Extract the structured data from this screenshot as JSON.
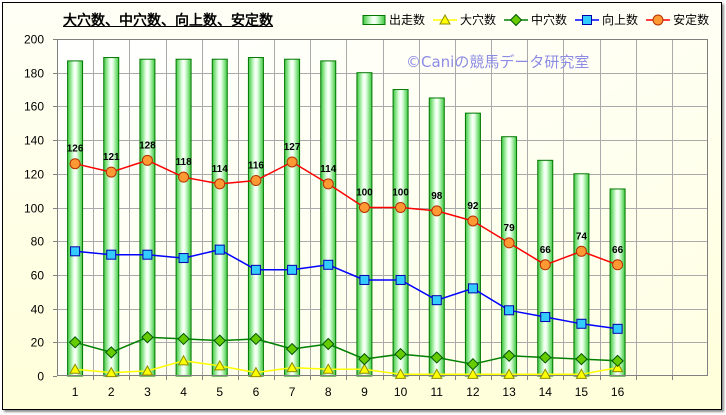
{
  "chart_data": {
    "type": "bar",
    "title": "大穴数、中穴数、向上数、安定数",
    "categories": [
      "1",
      "2",
      "3",
      "4",
      "5",
      "6",
      "7",
      "8",
      "9",
      "10",
      "11",
      "12",
      "13",
      "14",
      "15",
      "16"
    ],
    "ylim": [
      0,
      200
    ],
    "yticks": [
      0,
      20,
      40,
      60,
      80,
      100,
      120,
      140,
      160,
      180,
      200
    ],
    "grid": true,
    "legend": "top-right",
    "series": [
      {
        "name": "出走数",
        "type": "bar",
        "color": "#3CC83C",
        "edge_color": "#007700",
        "values": [
          187,
          189,
          188,
          188,
          188,
          189,
          188,
          187,
          180,
          170,
          165,
          156,
          142,
          128,
          120,
          111
        ]
      },
      {
        "name": "大穴数",
        "type": "line",
        "color": "#FFFF00",
        "marker": "triangle",
        "marker_fill": "#FFFF00",
        "marker_edge": "#8C8C00",
        "values": [
          4,
          2,
          3,
          9,
          6,
          2,
          5,
          4,
          4,
          1,
          1,
          1,
          1,
          1,
          1,
          5
        ]
      },
      {
        "name": "中穴数",
        "type": "line",
        "color": "#008000",
        "marker": "diamond",
        "marker_fill": "#66CC00",
        "marker_edge": "#005500",
        "values": [
          20,
          14,
          23,
          22,
          21,
          22,
          16,
          19,
          10,
          13,
          11,
          7,
          12,
          11,
          10,
          9
        ]
      },
      {
        "name": "向上数",
        "type": "line",
        "color": "#0000FF",
        "marker": "square",
        "marker_fill": "#33CCFF",
        "marker_edge": "#0000AA",
        "values": [
          74,
          72,
          72,
          70,
          75,
          63,
          63,
          66,
          57,
          57,
          45,
          52,
          39,
          35,
          31,
          28
        ]
      },
      {
        "name": "安定数",
        "type": "line",
        "color": "#FF0000",
        "marker": "circle",
        "marker_fill": "#FF9933",
        "marker_edge": "#B33000",
        "data_labels": true,
        "values": [
          126,
          121,
          128,
          118,
          114,
          116,
          127,
          114,
          100,
          100,
          98,
          92,
          79,
          66,
          74,
          66
        ]
      }
    ]
  },
  "watermark": "©Caniの競馬データ研究室"
}
